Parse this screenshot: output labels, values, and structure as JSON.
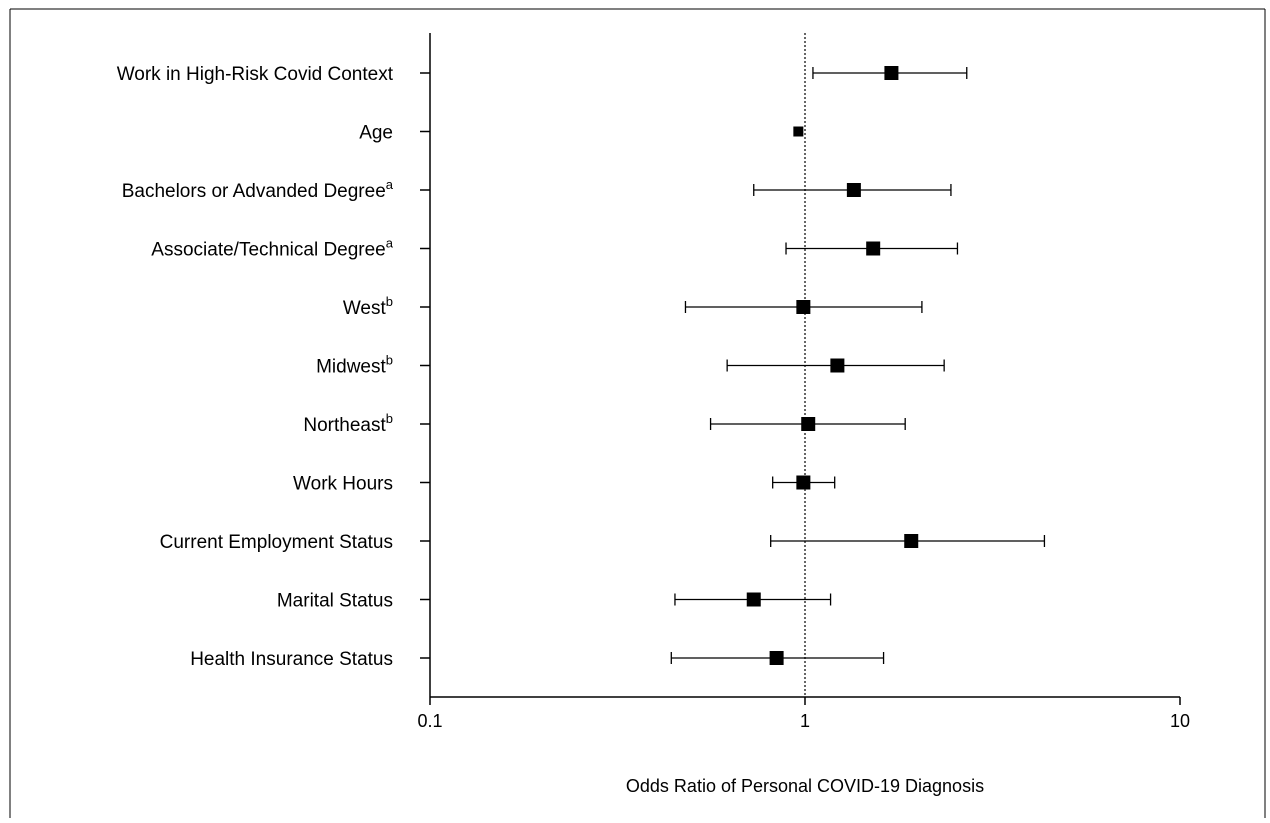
{
  "chart_data": {
    "type": "forest",
    "xlabel": "Odds Ratio of Personal COVID-19 Diagnosis",
    "xscale": "log",
    "xlim": [
      0.1,
      10
    ],
    "x_ticks": [
      {
        "value": 0.1,
        "label": "0.1"
      },
      {
        "value": 1,
        "label": "1"
      },
      {
        "value": 10,
        "label": "10"
      }
    ],
    "reference_line": 1,
    "grid": false,
    "legend": "none",
    "marker_color": "#000000",
    "rows": [
      {
        "label": "Work in High-Risk Covid Context",
        "superscript": "",
        "or": 1.7,
        "lower": 1.05,
        "upper": 2.7
      },
      {
        "label": "Age",
        "superscript": "",
        "or": 0.96,
        "lower": 0.96,
        "upper": 0.96
      },
      {
        "label": "Bachelors or Advanded Degree",
        "superscript": "a",
        "or": 1.35,
        "lower": 0.73,
        "upper": 2.45
      },
      {
        "label": "Associate/Technical Degree",
        "superscript": "a",
        "or": 1.52,
        "lower": 0.89,
        "upper": 2.55
      },
      {
        "label": "West",
        "superscript": "b",
        "or": 0.99,
        "lower": 0.48,
        "upper": 2.05
      },
      {
        "label": "Midwest",
        "superscript": "b",
        "or": 1.22,
        "lower": 0.62,
        "upper": 2.35
      },
      {
        "label": "Northeast",
        "superscript": "b",
        "or": 1.02,
        "lower": 0.56,
        "upper": 1.85
      },
      {
        "label": "Work Hours",
        "superscript": "",
        "or": 0.99,
        "lower": 0.82,
        "upper": 1.2
      },
      {
        "label": "Current Employment Status",
        "superscript": "",
        "or": 1.92,
        "lower": 0.81,
        "upper": 4.35
      },
      {
        "label": "Marital Status",
        "superscript": "",
        "or": 0.73,
        "lower": 0.45,
        "upper": 1.17
      },
      {
        "label": "Health Insurance Status",
        "superscript": "",
        "or": 0.84,
        "lower": 0.44,
        "upper": 1.62
      }
    ]
  }
}
